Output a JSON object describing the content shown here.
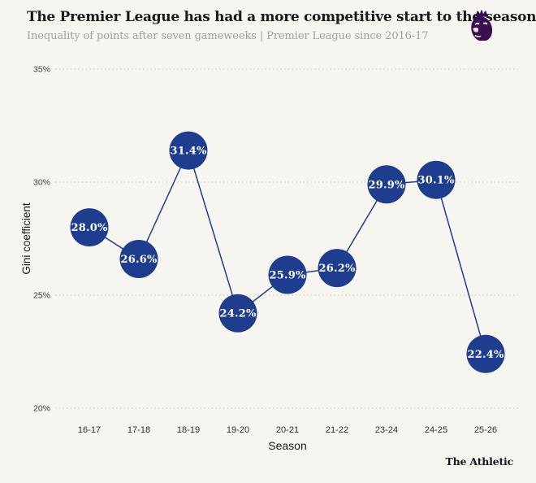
{
  "page": {
    "background_color": "#f7f5f0"
  },
  "header": {
    "title": "The Premier League has had a more competitive start to the season",
    "subtitle": "Inequality of points after seven gameweeks | Premier League since 2016-17",
    "logo": "premier-league-lion-crest",
    "logo_color": "#3a0d53"
  },
  "chart_data": {
    "type": "line",
    "title": "The Premier League has had a more competitive start to the season",
    "subtitle": "Inequality of points after seven gameweeks | Premier League since 2016-17",
    "categories": [
      "16-17",
      "17-18",
      "18-19",
      "19-20",
      "20-21",
      "21-22",
      "23-24",
      "24-25",
      "25-26"
    ],
    "values": [
      28.0,
      26.6,
      31.4,
      24.2,
      25.9,
      26.2,
      29.9,
      30.1,
      22.4
    ],
    "point_labels": [
      "28.0%",
      "26.6%",
      "31.4%",
      "24.2%",
      "25.9%",
      "26.2%",
      "29.9%",
      "30.1%",
      "22.4%"
    ],
    "xlabel": "Season",
    "ylabel": "Gini coefficient",
    "ylim": [
      20,
      35
    ],
    "ytick_values": [
      35,
      30,
      25,
      20
    ],
    "ytick_labels": [
      "35%",
      "30%",
      "25%",
      "20%"
    ],
    "grid": "horizontal-dotted",
    "legend": "none",
    "accent_color": "#1e3d8f",
    "point_label_color": "#ffffff",
    "gridline_color": "#d8d5ca",
    "tick_label_color": "#3c3c3c",
    "axis_title_color": "#1a1a1a"
  },
  "footer": {
    "credit": "The Athletic"
  }
}
